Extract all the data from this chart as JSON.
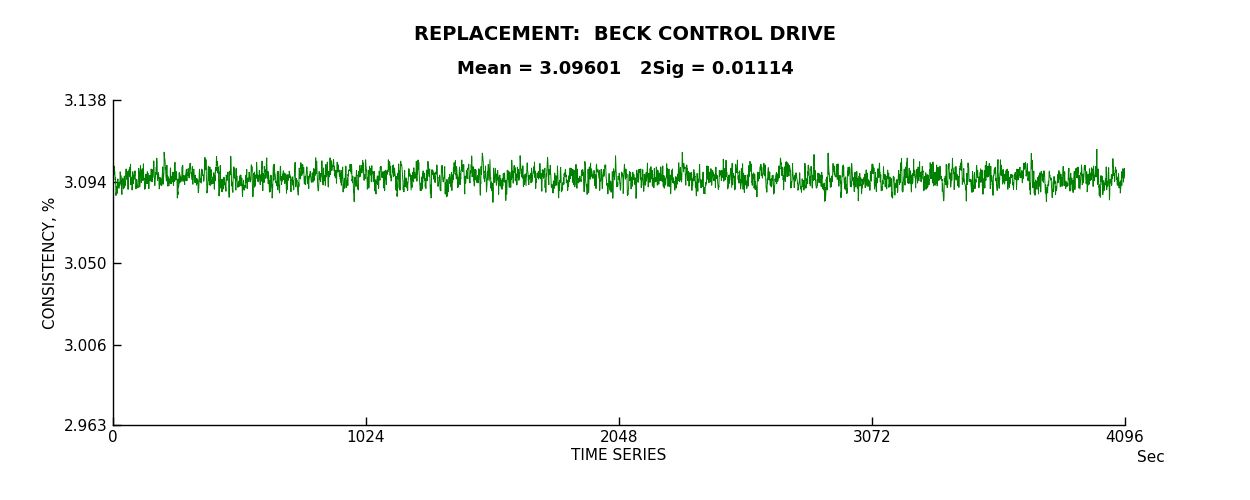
{
  "title_line1": "REPLACEMENT:  BECK CONTROL DRIVE",
  "title_line2": "Mean = 3.09601   2Sig = 0.01114",
  "xlabel": "TIME SERIES",
  "xlabel_right": "Sec",
  "ylabel": "CONSISTENCY, %",
  "mean": 3.09601,
  "two_sigma": 0.01114,
  "n_points": 4096,
  "xlim": [
    0,
    4096
  ],
  "ylim": [
    2.963,
    3.138
  ],
  "yticks": [
    2.963,
    3.006,
    3.05,
    3.094,
    3.138
  ],
  "xticks": [
    0,
    1024,
    2048,
    3072,
    4096
  ],
  "line_color": "#008000",
  "background_color": "#ffffff",
  "title_fontsize": 14,
  "subtitle_fontsize": 13,
  "axis_label_fontsize": 11,
  "tick_fontsize": 11,
  "seed": 42,
  "ar_coef": 0.65,
  "noise_scale": 0.0042
}
